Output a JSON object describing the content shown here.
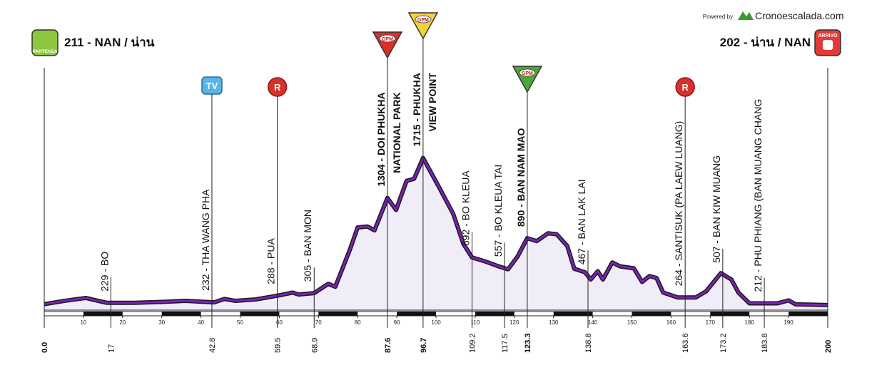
{
  "chart_data": {
    "type": "area",
    "start_name": "211 - NAN / น่าน",
    "finish_name": "202 - น่าน / NAN",
    "start_badge": "PARTENZA",
    "finish_badge": "ARRIVO",
    "credit": "Powered by",
    "brand": "Cronoescalada.com",
    "color": "#7a22b4",
    "fill": "#f1edf8",
    "xlim": [
      0,
      200
    ],
    "ylim": [
      150,
      1800
    ],
    "xticks": [
      10,
      20,
      30,
      40,
      50,
      60,
      70,
      80,
      90,
      100,
      110,
      120,
      130,
      140,
      150,
      160,
      170,
      180,
      190
    ],
    "x": [
      0,
      5.1,
      10.6,
      16,
      23,
      30.6,
      36,
      43.4,
      46,
      48.8,
      54,
      59.7,
      63.4,
      65,
      68.9,
      72.5,
      74.3,
      78,
      80,
      82.5,
      84.3,
      87.6,
      89.8,
      92.5,
      94.4,
      96.7,
      100.7,
      104.4,
      107,
      109.2,
      112.6,
      116,
      118.4,
      120.8,
      123.3,
      125.7,
      128.6,
      130.8,
      133.5,
      135.3,
      138,
      139.5,
      141.3,
      142.6,
      145,
      147,
      150.5,
      152.6,
      154.5,
      156.3,
      158,
      161.7,
      166.3,
      169,
      172.7,
      175.4,
      177.2,
      180,
      187.2,
      190,
      191.8,
      200
    ],
    "values": [
      211,
      245,
      275,
      225,
      225,
      235,
      245,
      230,
      265,
      245,
      260,
      300,
      330,
      310,
      325,
      420,
      390,
      770,
      1000,
      1010,
      970,
      1304,
      1180,
      1480,
      1500,
      1715,
      1420,
      1140,
      830,
      692,
      650,
      600,
      570,
      700,
      890,
      860,
      940,
      930,
      810,
      575,
      540,
      465,
      550,
      465,
      640,
      600,
      580,
      440,
      500,
      480,
      330,
      280,
      280,
      345,
      530,
      465,
      330,
      220,
      220,
      250,
      210,
      202
    ],
    "waypoints": [
      {
        "km": {
          "value": 0,
          "label": "0.0"
        },
        "bold": true,
        "lines": []
      },
      {
        "km": 17,
        "bold": false,
        "lines": [
          "229 - BO"
        ]
      },
      {
        "km": 42.8,
        "bold": false,
        "lines": [
          "232 - THA WANG PHA"
        ]
      },
      {
        "km": 59.5,
        "bold": false,
        "lines": [
          "288 - PUA"
        ]
      },
      {
        "km": 68.9,
        "bold": false,
        "lines": [
          "305 - BAN MON"
        ]
      },
      {
        "km": 87.6,
        "bold": true,
        "lines": [
          "1304 - DOI PHUKHA",
          "NATIONAL PARK"
        ]
      },
      {
        "km": 96.7,
        "bold": true,
        "lines": [
          "1715 - PHUKHA",
          "VIEW POINT"
        ]
      },
      {
        "km": 109.2,
        "bold": false,
        "lines": [
          "692 - BO KLEUA"
        ]
      },
      {
        "km": 117.5,
        "bold": false,
        "lines": [
          "557 - BO KLEUA TAI"
        ]
      },
      {
        "km": 123.3,
        "bold": true,
        "lines": [
          "890 - BAN NAM MAO"
        ]
      },
      {
        "km": 138.8,
        "bold": false,
        "lines": [
          "467 - BAN LAK LAI"
        ]
      },
      {
        "km": 163.6,
        "bold": false,
        "lines": [
          "264 - SANTISUK (PA LAEW LUANG)"
        ]
      },
      {
        "km": 173.2,
        "bold": false,
        "lines": [
          "507 - BAN KIW MUANG"
        ]
      },
      {
        "km": 183.8,
        "bold": false,
        "lines": [
          "212 - PHU PHIANG (BAN MUANG CHANG"
        ]
      },
      {
        "km": 200,
        "bold": true,
        "lines": []
      }
    ],
    "markers": [
      {
        "km": 42.8,
        "label": "TV",
        "shape": "square",
        "color": "#5ab4e6"
      },
      {
        "km": 59.5,
        "label": "R",
        "shape": "circle",
        "color": "#d9302c"
      },
      {
        "km": 87.6,
        "label": "GPM",
        "shape": "triangle",
        "color": "#d9302c"
      },
      {
        "km": 96.7,
        "label": "GPM",
        "shape": "triangle",
        "color": "#f2d43a"
      },
      {
        "km": 123.3,
        "label": "GPM",
        "shape": "triangle",
        "color": "#4aa83a"
      },
      {
        "km": 163.6,
        "label": "R",
        "shape": "circle",
        "color": "#d9302c"
      }
    ]
  }
}
